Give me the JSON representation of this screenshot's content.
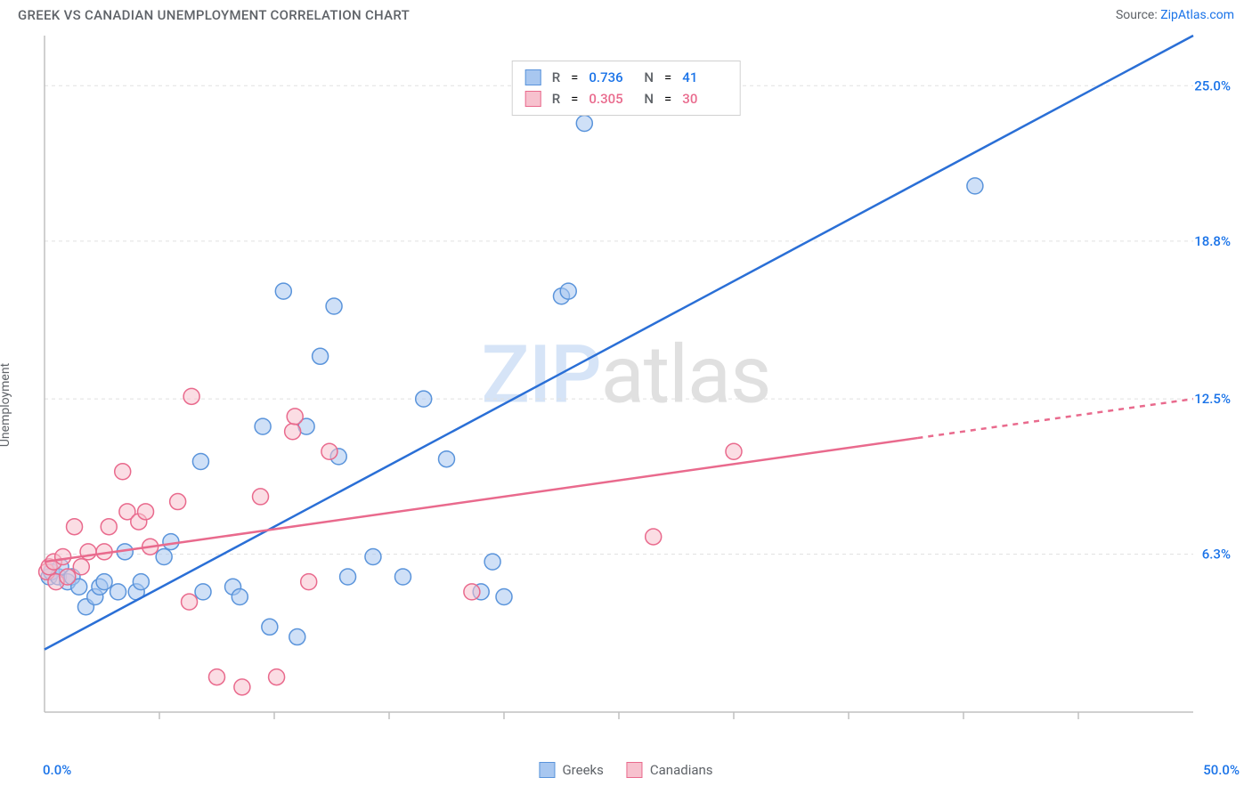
{
  "header": {
    "title": "GREEK VS CANADIAN UNEMPLOYMENT CORRELATION CHART",
    "source_prefix": "Source: ",
    "source_name": "ZipAtlas.com"
  },
  "watermark": {
    "z": "Z",
    "ip": "IP",
    "atlas": "atlas"
  },
  "chart": {
    "type": "scatter",
    "ylabel": "Unemployment",
    "background_color": "#ffffff",
    "grid_color": "#e0e0e0",
    "axis_color": "#c0c0c0",
    "xlim": [
      0,
      50
    ],
    "ylim": [
      0,
      27
    ],
    "x_axis": {
      "min_label": "0.0%",
      "max_label": "50.0%",
      "label_color": "#1a73e8",
      "tick_positions": [
        5,
        10,
        15,
        20,
        25,
        30,
        35,
        40,
        45
      ]
    },
    "y_axis": {
      "grid_values": [
        6.3,
        12.5,
        18.8,
        25.0
      ],
      "grid_labels": [
        "6.3%",
        "12.5%",
        "18.8%",
        "25.0%"
      ],
      "label_color": "#1a73e8"
    },
    "series": [
      {
        "id": "greeks",
        "legend_label": "Greeks",
        "color_fill": "#a8c7f0",
        "color_stroke": "#5a94db",
        "fill_opacity": 0.55,
        "marker_radius": 9,
        "r_value": "0.736",
        "n_value": "41",
        "stat_color": "#1a73e8",
        "trend": {
          "x1": 0,
          "y1": 2.5,
          "x2": 50,
          "y2": 27.0,
          "color": "#2a6fd6",
          "dash_from_x": null
        },
        "points": [
          [
            0.2,
            5.4
          ],
          [
            0.3,
            5.6
          ],
          [
            0.6,
            5.4
          ],
          [
            0.7,
            5.8
          ],
          [
            1.0,
            5.2
          ],
          [
            1.2,
            5.4
          ],
          [
            1.5,
            5.0
          ],
          [
            1.8,
            4.2
          ],
          [
            2.2,
            4.6
          ],
          [
            2.4,
            5.0
          ],
          [
            2.6,
            5.2
          ],
          [
            3.2,
            4.8
          ],
          [
            3.5,
            6.4
          ],
          [
            4.0,
            4.8
          ],
          [
            4.2,
            5.2
          ],
          [
            5.2,
            6.2
          ],
          [
            5.5,
            6.8
          ],
          [
            6.8,
            10.0
          ],
          [
            6.9,
            4.8
          ],
          [
            8.2,
            5.0
          ],
          [
            8.5,
            4.6
          ],
          [
            9.5,
            11.4
          ],
          [
            9.8,
            3.4
          ],
          [
            10.4,
            16.8
          ],
          [
            11.0,
            3.0
          ],
          [
            11.4,
            11.4
          ],
          [
            12.0,
            14.2
          ],
          [
            12.6,
            16.2
          ],
          [
            12.8,
            10.2
          ],
          [
            13.2,
            5.4
          ],
          [
            14.3,
            6.2
          ],
          [
            15.6,
            5.4
          ],
          [
            16.5,
            12.5
          ],
          [
            17.5,
            10.1
          ],
          [
            19.0,
            4.8
          ],
          [
            19.5,
            6.0
          ],
          [
            20.0,
            4.6
          ],
          [
            22.5,
            16.6
          ],
          [
            22.8,
            16.8
          ],
          [
            23.5,
            23.5
          ],
          [
            40.5,
            21.0
          ]
        ]
      },
      {
        "id": "canadians",
        "legend_label": "Canadians",
        "color_fill": "#f7c1ce",
        "color_stroke": "#e96a8d",
        "fill_opacity": 0.55,
        "marker_radius": 9,
        "r_value": "0.305",
        "n_value": "30",
        "stat_color": "#e96a8d",
        "trend": {
          "x1": 0,
          "y1": 6.0,
          "x2": 50,
          "y2": 12.5,
          "color": "#e96a8d",
          "dash_from_x": 38
        },
        "points": [
          [
            0.1,
            5.6
          ],
          [
            0.2,
            5.8
          ],
          [
            0.4,
            6.0
          ],
          [
            0.5,
            5.2
          ],
          [
            0.8,
            6.2
          ],
          [
            1.0,
            5.4
          ],
          [
            1.3,
            7.4
          ],
          [
            1.6,
            5.8
          ],
          [
            1.9,
            6.4
          ],
          [
            2.6,
            6.4
          ],
          [
            2.8,
            7.4
          ],
          [
            3.4,
            9.6
          ],
          [
            3.6,
            8.0
          ],
          [
            4.1,
            7.6
          ],
          [
            4.4,
            8.0
          ],
          [
            4.6,
            6.6
          ],
          [
            5.8,
            8.4
          ],
          [
            6.3,
            4.4
          ],
          [
            6.4,
            12.6
          ],
          [
            7.5,
            1.4
          ],
          [
            8.6,
            1.0
          ],
          [
            9.4,
            8.6
          ],
          [
            10.1,
            1.4
          ],
          [
            10.8,
            11.2
          ],
          [
            10.9,
            11.8
          ],
          [
            11.5,
            5.2
          ],
          [
            12.4,
            10.4
          ],
          [
            18.6,
            4.8
          ],
          [
            26.5,
            7.0
          ],
          [
            30.0,
            10.4
          ]
        ]
      }
    ],
    "legend": {
      "r_label": "R",
      "n_label": "N",
      "eq": "="
    }
  }
}
